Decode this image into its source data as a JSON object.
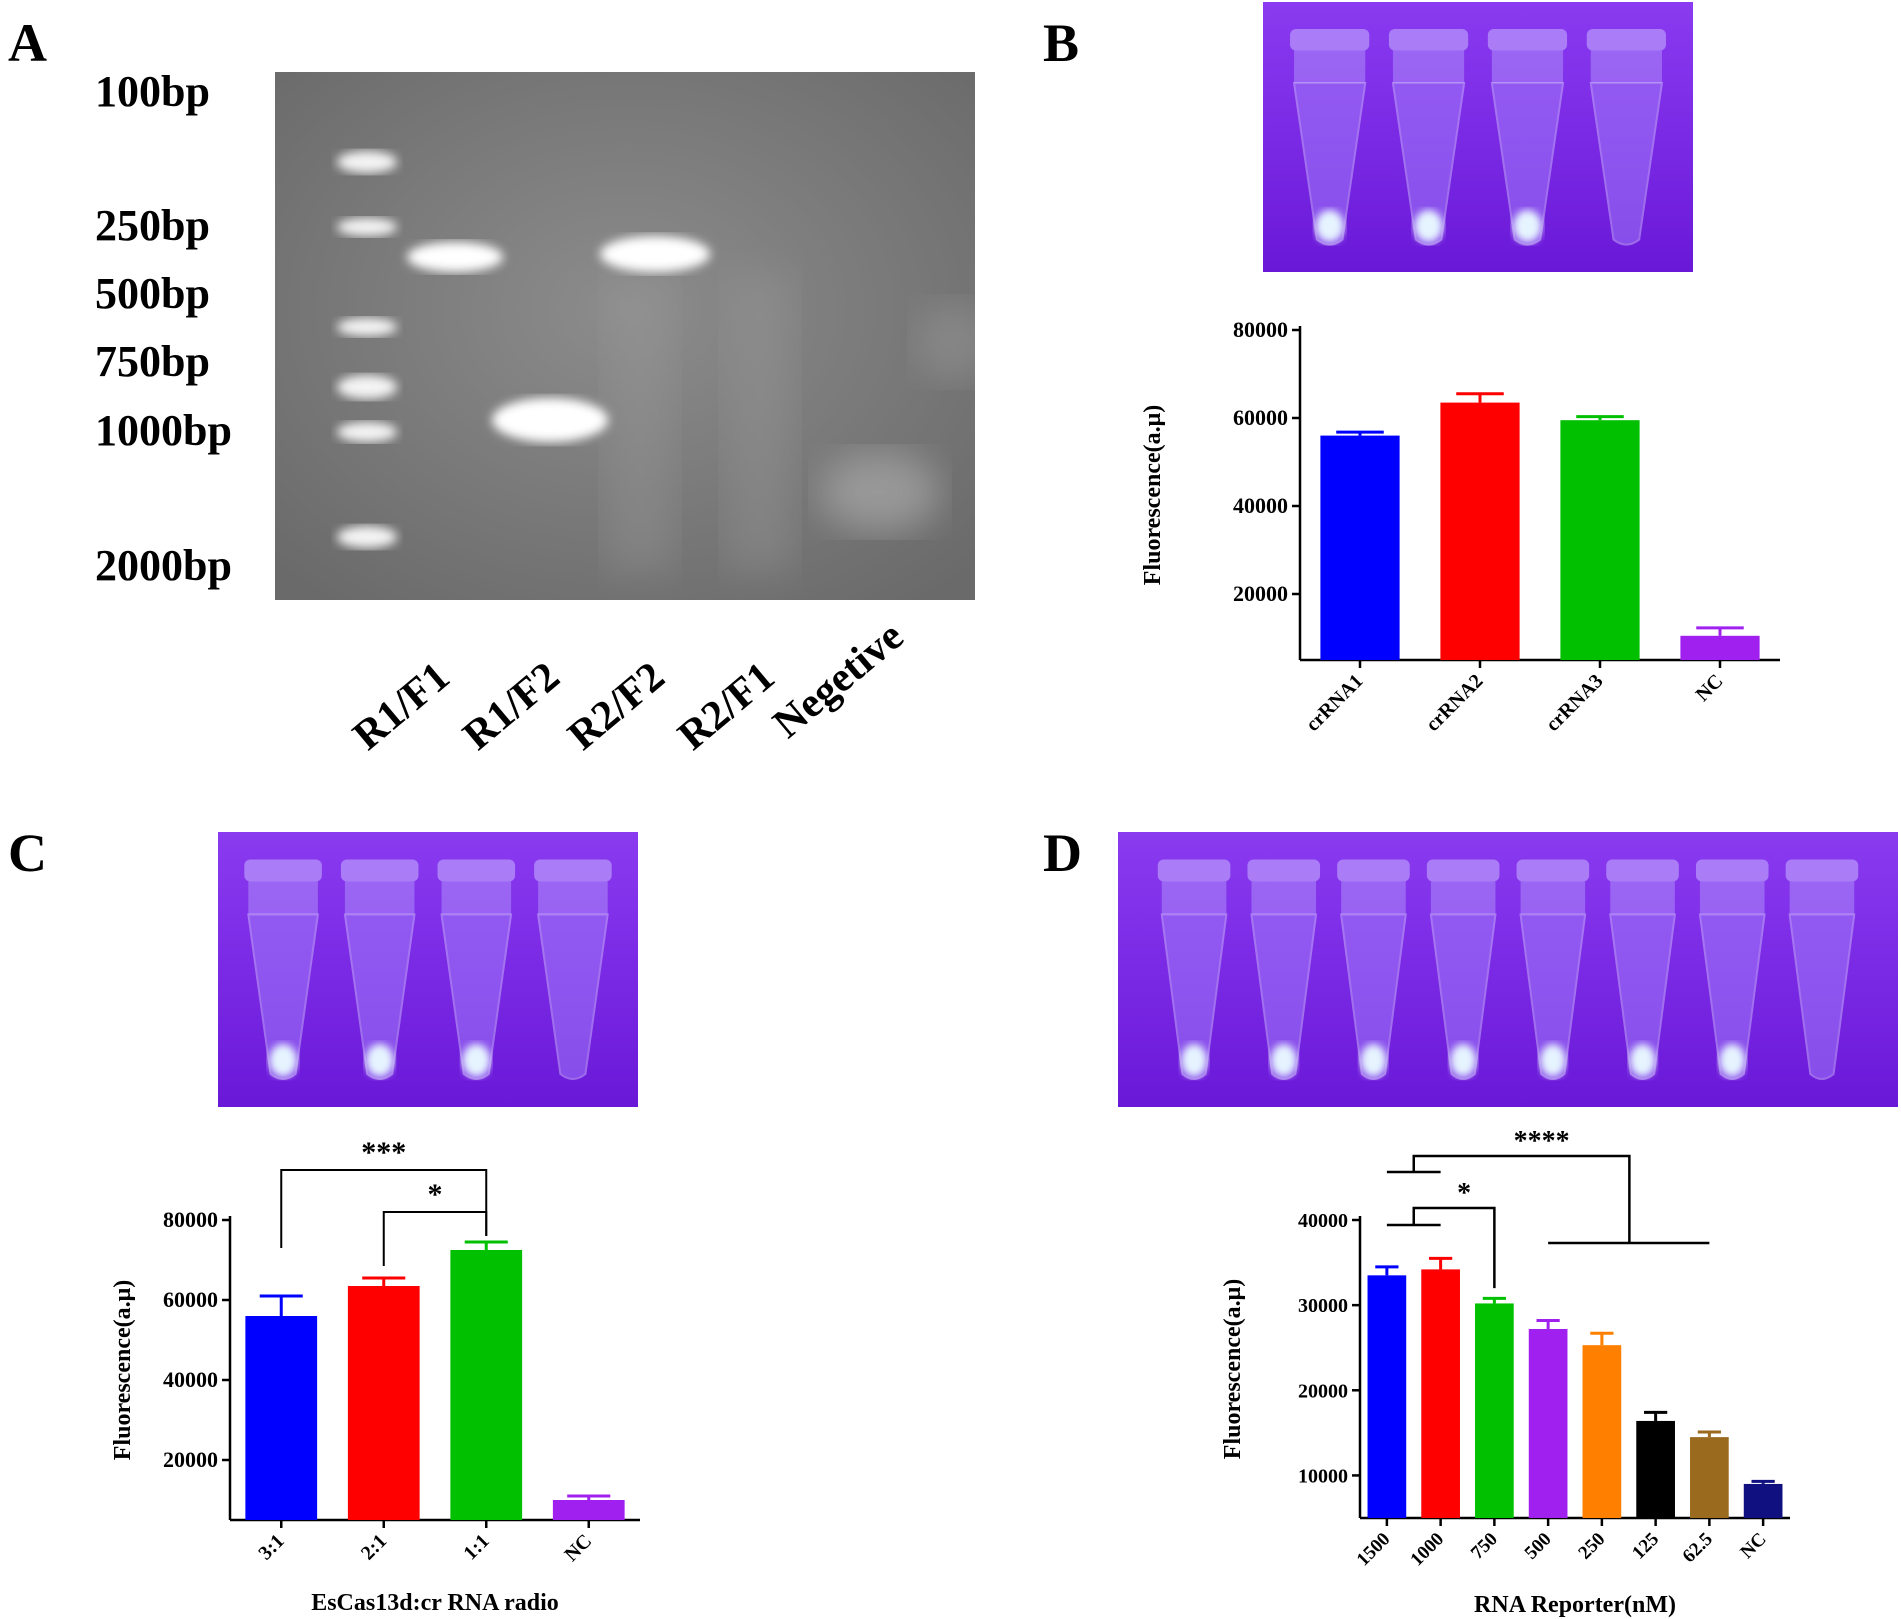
{
  "panels": {
    "A": {
      "label": "A",
      "ladder": [
        "100bp",
        "250bp",
        "500bp",
        "750bp",
        "1000bp",
        "2000bp"
      ],
      "lanes": [
        "R1/F1",
        "R1/F2",
        "R2/F2",
        "R2/F1",
        "Negetive"
      ]
    },
    "B": {
      "label": "B"
    },
    "C": {
      "label": "C"
    },
    "D": {
      "label": "D"
    }
  },
  "colors": {
    "blue": "#0000ff",
    "red": "#ff0000",
    "green": "#00c000",
    "purple": "#a020f0",
    "orange": "#ff8000",
    "black": "#000000",
    "brown": "#9a6a1e",
    "navy": "#101080",
    "uv_bg": "#7a22e8",
    "gel_bg": "#7d7d7d"
  },
  "chart_data": [
    {
      "id": "B",
      "type": "bar",
      "categories": [
        "crRNA1",
        "crRNA2",
        "crRNA3",
        "NC"
      ],
      "values": [
        56000,
        63500,
        59500,
        10500
      ],
      "errors": [
        800,
        2000,
        800,
        1800
      ],
      "colors": [
        "#0000ff",
        "#ff0000",
        "#00c000",
        "#a020f0"
      ],
      "ylabel": "Fluorescence(a.μ)",
      "xlabel": "",
      "ylim": [
        5000,
        80000
      ],
      "yticks": [
        20000,
        40000,
        60000,
        80000
      ],
      "annotations": []
    },
    {
      "id": "C",
      "type": "bar",
      "categories": [
        "3:1",
        "2:1",
        "1:1",
        "NC"
      ],
      "values": [
        56000,
        63500,
        72500,
        10000
      ],
      "errors": [
        5000,
        2000,
        2000,
        1000
      ],
      "colors": [
        "#0000ff",
        "#ff0000",
        "#00c000",
        "#a020f0"
      ],
      "ylabel": "Fluorescence(a.μ)",
      "xlabel": "EsCas13d:cr RNA radio",
      "ylim": [
        5000,
        80000
      ],
      "yticks": [
        20000,
        40000,
        60000,
        80000
      ],
      "annotations": [
        {
          "text": "***",
          "from": 0,
          "to": 2,
          "level": 1
        },
        {
          "text": "*",
          "from": 1,
          "to": 2,
          "level": 0
        }
      ]
    },
    {
      "id": "D",
      "type": "bar",
      "categories": [
        "1500",
        "1000",
        "750",
        "500",
        "250",
        "125",
        "62.5",
        "NC"
      ],
      "values": [
        33500,
        34200,
        30200,
        27200,
        25300,
        16400,
        14500,
        9000
      ],
      "errors": [
        1000,
        1300,
        600,
        1000,
        1400,
        1000,
        600,
        300
      ],
      "colors": [
        "#0000ff",
        "#ff0000",
        "#00c000",
        "#a020f0",
        "#ff8000",
        "#000000",
        "#9a6a1e",
        "#101080"
      ],
      "ylabel": "Fluorescence(a.μ)",
      "xlabel": "RNA Reporter(nM)",
      "ylim": [
        5000,
        40000
      ],
      "yticks": [
        10000,
        20000,
        30000,
        40000
      ],
      "annotations": [
        {
          "text": "****",
          "from": "0-1",
          "to": "3-6",
          "level": 1
        },
        {
          "text": "*",
          "from": "0-1",
          "to": 2,
          "level": 0
        }
      ]
    }
  ]
}
